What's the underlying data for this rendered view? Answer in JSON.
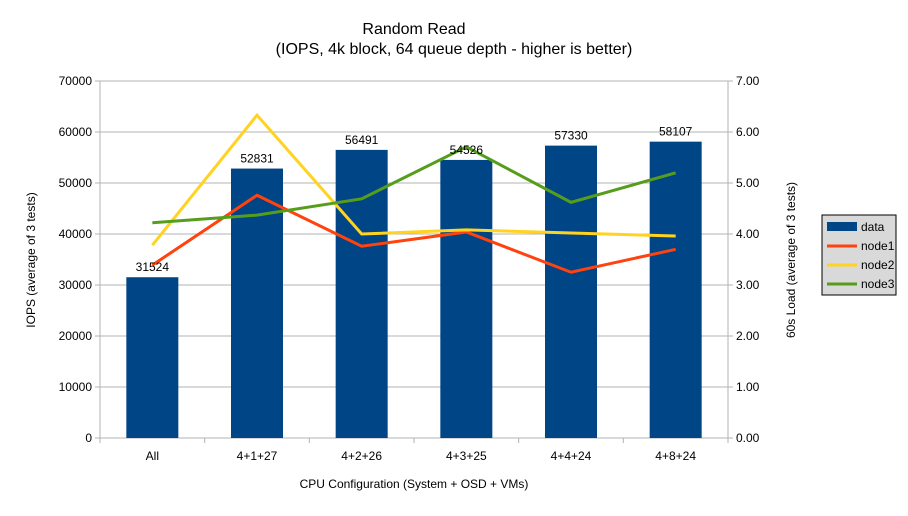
{
  "chart_data": {
    "type": "bar+line",
    "title": "Random Read",
    "subtitle": "(IOPS, 4k block, 64 queue depth - higher is better)",
    "xlabel": "CPU Configuration (System + OSD + VMs)",
    "ylabel": "IOPS (average of 3 tests)",
    "y2label": "60s Load (average of 3 tests)",
    "categories": [
      "All",
      "4+1+27",
      "4+2+26",
      "4+3+25",
      "4+4+24",
      "4+8+24"
    ],
    "ylim": [
      0,
      70000
    ],
    "yticks": [
      "0",
      "10000",
      "20000",
      "30000",
      "40000",
      "50000",
      "60000",
      "70000"
    ],
    "y2lim": [
      0,
      7
    ],
    "y2ticks": [
      "0.00",
      "1.00",
      "2.00",
      "3.00",
      "4.00",
      "5.00",
      "6.00",
      "7.00"
    ],
    "grid": true,
    "legend": "right",
    "bar_series": {
      "name": "data",
      "color": "#004586",
      "values": [
        31524,
        52831,
        56491,
        54526,
        57330,
        58107
      ],
      "labels": [
        "31524",
        "52831",
        "56491",
        "54526",
        "57330",
        "58107"
      ]
    },
    "line_series": [
      {
        "name": "node1",
        "color": "#ff420e",
        "axis": "right",
        "values": [
          3.39,
          4.76,
          3.76,
          4.04,
          3.25,
          3.7
        ]
      },
      {
        "name": "node2",
        "color": "#ffd320",
        "axis": "right",
        "values": [
          3.78,
          6.33,
          4.0,
          4.08,
          4.02,
          3.96
        ]
      },
      {
        "name": "node3",
        "color": "#579d1c",
        "axis": "right",
        "values": [
          4.22,
          4.37,
          4.69,
          5.71,
          4.62,
          5.2
        ]
      }
    ]
  }
}
